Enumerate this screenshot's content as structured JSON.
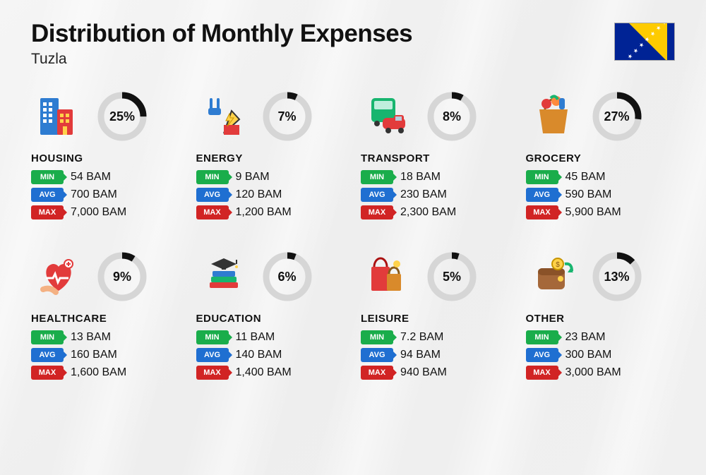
{
  "title": "Distribution of Monthly Expenses",
  "subtitle": "Tuzla",
  "labels": {
    "min": "MIN",
    "avg": "AVG",
    "max": "MAX"
  },
  "colors": {
    "min": "#1aad4b",
    "avg": "#1f6fd1",
    "max": "#d12424",
    "donut_track": "#d6d6d6",
    "donut_fill": "#111111",
    "text": "#111111",
    "background": "#f2f2f2"
  },
  "donut": {
    "radius": 30,
    "stroke_width": 9
  },
  "categories": [
    {
      "key": "housing",
      "name": "HOUSING",
      "percent": 25,
      "min": "54 BAM",
      "avg": "700 BAM",
      "max": "7,000 BAM"
    },
    {
      "key": "energy",
      "name": "ENERGY",
      "percent": 7,
      "min": "9 BAM",
      "avg": "120 BAM",
      "max": "1,200 BAM"
    },
    {
      "key": "transport",
      "name": "TRANSPORT",
      "percent": 8,
      "min": "18 BAM",
      "avg": "230 BAM",
      "max": "2,300 BAM"
    },
    {
      "key": "grocery",
      "name": "GROCERY",
      "percent": 27,
      "min": "45 BAM",
      "avg": "590 BAM",
      "max": "5,900 BAM"
    },
    {
      "key": "healthcare",
      "name": "HEALTHCARE",
      "percent": 9,
      "min": "13 BAM",
      "avg": "160 BAM",
      "max": "1,600 BAM"
    },
    {
      "key": "education",
      "name": "EDUCATION",
      "percent": 6,
      "min": "11 BAM",
      "avg": "140 BAM",
      "max": "1,400 BAM"
    },
    {
      "key": "leisure",
      "name": "LEISURE",
      "percent": 5,
      "min": "7.2 BAM",
      "avg": "94 BAM",
      "max": "940 BAM"
    },
    {
      "key": "other",
      "name": "OTHER",
      "percent": 13,
      "min": "23 BAM",
      "avg": "300 BAM",
      "max": "3,000 BAM"
    }
  ]
}
